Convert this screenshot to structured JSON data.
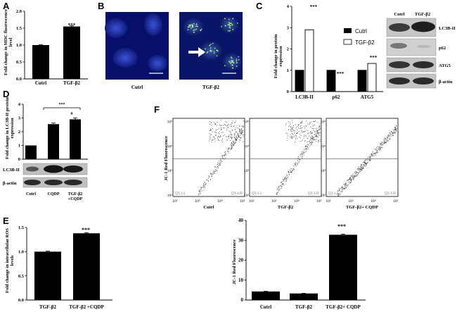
{
  "panels": {
    "A": {
      "letter": "A",
      "ylabel": [
        "Fold change in MDC fluorescence",
        "level"
      ],
      "sig": "***",
      "chart_data": {
        "type": "bar",
        "categories": [
          "Cutrl",
          "TGF-β2"
        ],
        "values": [
          1.0,
          1.55
        ],
        "errors": [
          0.01,
          0.02
        ],
        "ylim": [
          0,
          2.0
        ],
        "yticks": [
          "0.0",
          "0.5",
          "1.0",
          "1.5",
          "2.0"
        ]
      }
    },
    "B": {
      "letter": "B",
      "labels": [
        "Cutrl",
        "TGF-β2"
      ]
    },
    "C": {
      "letter": "C",
      "ylabel": [
        "Fold change in  protein",
        "expression"
      ],
      "legend": [
        "Cutrl",
        "TGF-β2"
      ],
      "sig": [
        "***",
        "***",
        "***"
      ],
      "chart_data": {
        "type": "bar",
        "categories": [
          "LC3B-II",
          "p62",
          "ATG5"
        ],
        "series": [
          {
            "name": "Cutrl",
            "values": [
              1.0,
              1.0,
              1.0
            ]
          },
          {
            "name": "TGF-β2",
            "values": [
              2.9,
              0.0,
              1.32
            ]
          }
        ],
        "ylim": [
          0,
          4
        ],
        "yticks": [
          "0",
          "1",
          "2",
          "3",
          "4"
        ]
      },
      "blot": {
        "headers": [
          "Cutrl",
          "TGF-β2"
        ],
        "rows": [
          "LC3B-II",
          "p62",
          "ATG5",
          "β-actin"
        ]
      }
    },
    "D": {
      "letter": "D",
      "ylabel": [
        "Fold change in LC3B-II protein",
        "expression"
      ],
      "sig": [
        "***",
        "#"
      ],
      "chart_data": {
        "type": "bar",
        "categories": [
          "Cutrl",
          "CQDP",
          "TGF-β2 +CQDP"
        ],
        "values": [
          1.0,
          2.55,
          2.9
        ],
        "errors": [
          0.0,
          0.08,
          0.1
        ],
        "ylim": [
          0,
          4
        ],
        "yticks": [
          "0",
          "1",
          "2",
          "3",
          "4"
        ]
      },
      "blot_rows": [
        "LC3B-II",
        "β-actin"
      ],
      "xcats": [
        "Cutrl",
        "CQDP",
        "TGF-β2",
        "+CQDP"
      ]
    },
    "E": {
      "letter": "E",
      "ylabel": [
        "Fold change in intracellular   ROS",
        "levels"
      ],
      "sig": "***",
      "chart_data": {
        "type": "bar",
        "categories": [
          "TGF-β2",
          "TGF-β2 +CQDP"
        ],
        "values": [
          1.0,
          1.38
        ],
        "errors": [
          0.01,
          0.01
        ],
        "ylim": [
          0,
          1.5
        ],
        "yticks": [
          "0.0",
          "0.5",
          "1.0",
          "1.5"
        ]
      }
    },
    "F": {
      "letter": "F",
      "flow": {
        "ylabel": "JC-1 Red Fluorescence",
        "labels": [
          "Cutrl",
          "TGF-β2",
          "TGF-β2+ CQDP"
        ],
        "quad_left": "Q1-LL",
        "quad_right": "Q1-LR",
        "xticks": [
          "10²",
          "10³",
          "10⁴",
          "10⁵"
        ],
        "yticks": [
          "10²",
          "10³",
          "10⁴",
          "10⁵"
        ]
      },
      "ylabel": "JC-1 Red Fluorescence",
      "sig": "***",
      "chart_data": {
        "type": "bar",
        "categories": [
          "Cutrl",
          "TGF-β2",
          "TGF-β2+ CQDP"
        ],
        "values": [
          4.3,
          3.3,
          32.8
        ],
        "errors": [
          0.1,
          0.1,
          0.3
        ],
        "ylim": [
          0,
          40
        ],
        "yticks": [
          "0",
          "10",
          "20",
          "30",
          "40"
        ]
      }
    }
  },
  "colors": {
    "bar": "#000000",
    "axis": "#000000",
    "blot_bg": "#bdbdbd",
    "band": "#2b2b2b"
  }
}
